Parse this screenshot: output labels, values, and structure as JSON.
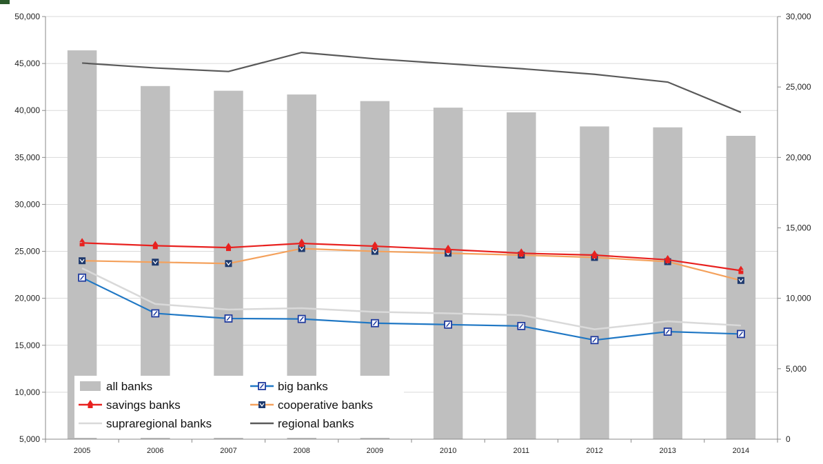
{
  "chart_data": {
    "type": "bar",
    "categories": [
      "2005",
      "2006",
      "2007",
      "2008",
      "2009",
      "2010",
      "2011",
      "2012",
      "2013",
      "2014"
    ],
    "left_axis": {
      "ylim": [
        5000,
        50000
      ],
      "ticks": [
        5000,
        10000,
        15000,
        20000,
        25000,
        30000,
        35000,
        40000,
        45000,
        50000
      ],
      "tick_labels": [
        "5,000",
        "10,000",
        "15,000",
        "20,000",
        "25,000",
        "30,000",
        "35,000",
        "40,000",
        "45,000",
        "50,000"
      ]
    },
    "right_axis": {
      "ylim": [
        0,
        30000
      ],
      "ticks": [
        0,
        5000,
        10000,
        15000,
        20000,
        25000,
        30000
      ],
      "tick_labels": [
        "0",
        "5,000",
        "10,000",
        "15,000",
        "20,000",
        "25,000",
        "30,000"
      ]
    },
    "grid": true,
    "legend_position": "bottom-left",
    "series": [
      {
        "name": "all banks",
        "kind": "bar",
        "axis": "left",
        "color": "#bfbfbf",
        "values": [
          46400,
          42600,
          42100,
          41700,
          41000,
          40300,
          39800,
          38300,
          38200,
          37300
        ]
      },
      {
        "name": "big banks",
        "kind": "line",
        "axis": "left",
        "color": "#1f77c4",
        "marker": "square",
        "values": [
          22200,
          18400,
          17850,
          17800,
          17350,
          17200,
          17050,
          15550,
          16450,
          16200
        ]
      },
      {
        "name": "savings banks",
        "kind": "line",
        "axis": "left",
        "color": "#e8211f",
        "marker": "triangle",
        "values": [
          25900,
          25600,
          25400,
          25850,
          25550,
          25200,
          24800,
          24600,
          24100,
          22950
        ]
      },
      {
        "name": "cooperative banks",
        "kind": "line",
        "axis": "left",
        "color": "#f4a15c",
        "marker": "square-dark",
        "values": [
          24000,
          23850,
          23700,
          25300,
          25000,
          24800,
          24600,
          24350,
          23900,
          21900
        ]
      },
      {
        "name": "supraregional banks",
        "kind": "line",
        "axis": "left",
        "color": "#d9d9d9",
        "marker": "none",
        "values": [
          23200,
          19400,
          18800,
          18950,
          18550,
          18400,
          18200,
          16700,
          17550,
          17100
        ]
      },
      {
        "name": "regional banks",
        "kind": "line",
        "axis": "right",
        "color": "#595959",
        "marker": "none",
        "values": [
          26700,
          26350,
          26100,
          27450,
          27000,
          26650,
          26300,
          25900,
          25350,
          23200
        ]
      }
    ]
  }
}
